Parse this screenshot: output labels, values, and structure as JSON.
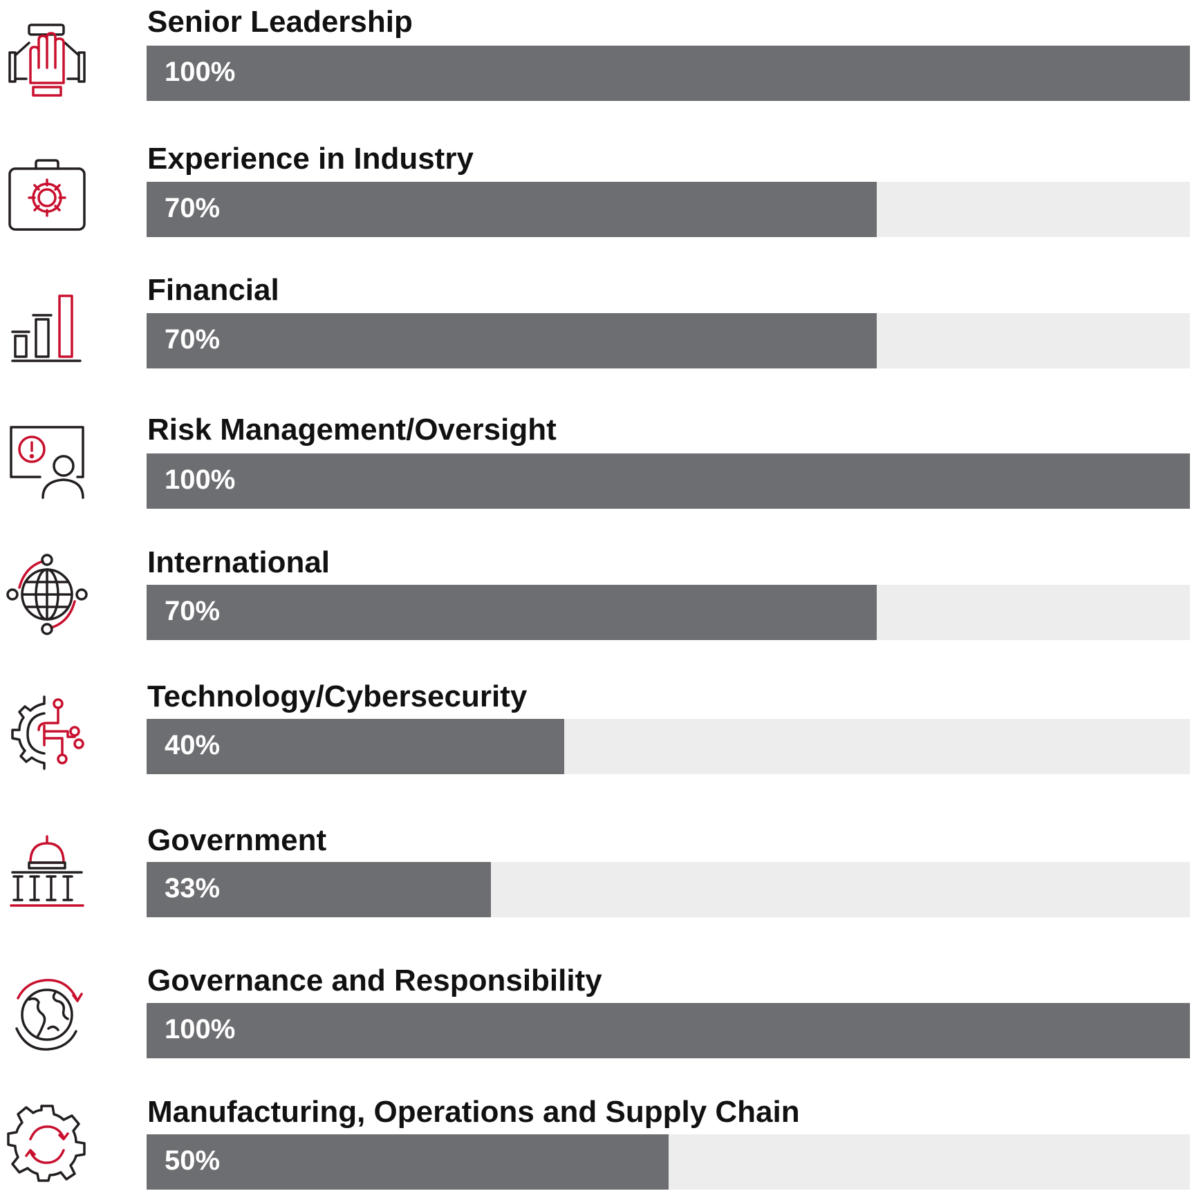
{
  "colors": {
    "bar": "#6d6e71",
    "track": "#ededed",
    "accent": "#c8102e",
    "icon_dark": "#231f20"
  },
  "chart_data": {
    "type": "bar",
    "orientation": "horizontal",
    "title": "",
    "xlabel": "",
    "ylabel": "",
    "xlim": [
      0,
      100
    ],
    "categories": [
      "Senior Leadership",
      "Experience in Industry",
      "Financial",
      "Risk Management/Oversight",
      "International",
      "Technology/Cybersecurity",
      "Government",
      "Governance and Responsibility",
      "Manufacturing, Operations and Supply Chain"
    ],
    "values": [
      100,
      70,
      70,
      100,
      70,
      40,
      33,
      100,
      50
    ],
    "value_labels": [
      "100%",
      "70%",
      "70%",
      "100%",
      "70%",
      "40%",
      "33%",
      "100%",
      "50%"
    ],
    "icons": [
      "raised-hand-icon",
      "briefcase-gear-icon",
      "bar-chart-icon",
      "presentation-alert-icon",
      "globe-network-icon",
      "gear-circuit-icon",
      "capitol-building-icon",
      "earth-cycle-icon",
      "gear-refresh-icon"
    ]
  }
}
